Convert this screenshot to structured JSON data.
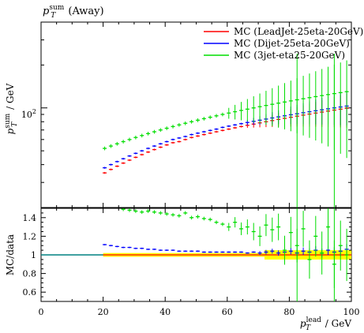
{
  "chart_data": [
    {
      "type": "scatter",
      "panel": "main",
      "title": "p_T^sum (Away)",
      "ylabel": "p_T^sum / GeV",
      "xlim": [
        0,
        100
      ],
      "ylim": [
        20,
        400
      ],
      "yscale": "log",
      "yticks": [
        {
          "value": 100,
          "label": "10²"
        }
      ],
      "legend": "top-right",
      "series": [
        {
          "name": "MC (LeadJet-25eta-20GeV)",
          "color": "#ff0000",
          "x": [
            20.5,
            22.5,
            24.5,
            26.5,
            28.5,
            30.5,
            32.5,
            34.5,
            36.5,
            38.5,
            40.5,
            42.5,
            44.5,
            46.5,
            48.5,
            50.5,
            52.5,
            54.5,
            56.5,
            58.5,
            60.5,
            62.5,
            64.5,
            66.5,
            68.5,
            70.5,
            72.5,
            74.5,
            76.5,
            78.5,
            80.5,
            82.5,
            84.5,
            86.5,
            88.5,
            90.5,
            92.5,
            94.5,
            96.5,
            98.5
          ],
          "y": [
            35,
            37,
            39,
            41,
            43,
            45,
            47,
            49,
            51,
            53,
            55,
            57,
            58,
            60,
            62,
            63.5,
            65,
            66.5,
            68,
            69.5,
            71,
            72.5,
            74,
            75.5,
            77,
            78.5,
            80,
            81.5,
            83,
            84.5,
            86,
            87.5,
            89,
            90.5,
            92,
            93.5,
            95,
            96.5,
            98,
            99.5
          ]
        },
        {
          "name": "MC (Dijet-25eta-20GeV)",
          "color": "#0000ff",
          "x": [
            20.5,
            22.5,
            24.5,
            26.5,
            28.5,
            30.5,
            32.5,
            34.5,
            36.5,
            38.5,
            40.5,
            42.5,
            44.5,
            46.5,
            48.5,
            50.5,
            52.5,
            54.5,
            56.5,
            58.5,
            60.5,
            62.5,
            64.5,
            66.5,
            68.5,
            70.5,
            72.5,
            74.5,
            76.5,
            78.5,
            80.5,
            82.5,
            84.5,
            86.5,
            88.5,
            90.5,
            92.5,
            94.5,
            96.5,
            98.5
          ],
          "y": [
            38,
            40,
            42,
            44,
            46,
            48,
            50,
            52,
            54,
            56,
            58,
            60,
            61.5,
            63,
            65,
            66.5,
            68,
            69.5,
            71,
            73,
            74.5,
            76,
            77.5,
            79,
            80.5,
            82,
            83.5,
            85,
            86.5,
            88,
            89.5,
            91,
            92.5,
            94,
            95.5,
            97,
            98.5,
            100,
            101.5,
            103
          ]
        },
        {
          "name": "MC (3jet-eta25-20GeV)",
          "color": "#00dd00",
          "x": [
            20.5,
            22.5,
            24.5,
            26.5,
            28.5,
            30.5,
            32.5,
            34.5,
            36.5,
            38.5,
            40.5,
            42.5,
            44.5,
            46.5,
            48.5,
            50.5,
            52.5,
            54.5,
            56.5,
            58.5,
            60.5,
            62.5,
            64.5,
            66.5,
            68.5,
            70.5,
            72.5,
            74.5,
            76.5,
            78.5,
            80.5,
            82.5,
            84.5,
            86.5,
            88.5,
            90.5,
            92.5,
            94.5,
            96.5,
            98.5
          ],
          "y": [
            52,
            54,
            56,
            58,
            60,
            62,
            64,
            66,
            68,
            70,
            72,
            74,
            76,
            78,
            80,
            82,
            84,
            86,
            88,
            90,
            92,
            94,
            96,
            98,
            100,
            102,
            104,
            106,
            108,
            110,
            112,
            114,
            116,
            118,
            120,
            122,
            124,
            126,
            128,
            130
          ]
        }
      ]
    },
    {
      "type": "scatter",
      "panel": "ratio",
      "xlabel": "p_T^lead / GeV",
      "ylabel": "MC/data",
      "xlim": [
        0,
        100
      ],
      "ylim": [
        0.5,
        1.5
      ],
      "xticks": [
        0,
        20,
        40,
        60,
        80,
        100
      ],
      "yticks": [
        0.6,
        0.8,
        1,
        1.2,
        1.4
      ],
      "series": [
        {
          "name": "MC (LeadJet-25eta-20GeV)",
          "color": "#ff0000",
          "x": [
            20.5,
            22.5,
            24.5,
            26.5,
            28.5,
            30.5,
            32.5,
            34.5,
            36.5,
            38.5,
            40.5,
            42.5,
            44.5,
            46.5,
            48.5,
            50.5,
            52.5,
            54.5,
            56.5,
            58.5,
            60.5,
            62.5,
            64.5,
            66.5,
            68.5,
            70.5,
            72.5,
            74.5,
            76.5,
            78.5,
            80.5,
            82.5,
            84.5,
            86.5,
            88.5,
            90.5,
            92.5,
            94.5,
            96.5,
            98.5
          ],
          "y": [
            1,
            1,
            1,
            1,
            1,
            1,
            1,
            1,
            1,
            1,
            1,
            1,
            1,
            1,
            1,
            1,
            1,
            1,
            1,
            1,
            1,
            1,
            1,
            1,
            1,
            1,
            1,
            1,
            1,
            1,
            1,
            1,
            1,
            1,
            1,
            1,
            1,
            1,
            1,
            1
          ]
        },
        {
          "name": "MC (Dijet-25eta-20GeV)",
          "color": "#0000ff",
          "x": [
            20.5,
            22.5,
            24.5,
            26.5,
            28.5,
            30.5,
            32.5,
            34.5,
            36.5,
            38.5,
            40.5,
            42.5,
            44.5,
            46.5,
            48.5,
            50.5,
            52.5,
            54.5,
            56.5,
            58.5,
            60.5,
            62.5,
            64.5,
            66.5,
            68.5,
            70.5,
            72.5,
            74.5,
            76.5,
            78.5,
            80.5,
            82.5,
            84.5,
            86.5,
            88.5,
            90.5,
            92.5,
            94.5,
            96.5,
            98.5
          ],
          "y": [
            1.11,
            1.1,
            1.09,
            1.08,
            1.08,
            1.07,
            1.07,
            1.06,
            1.06,
            1.05,
            1.05,
            1.05,
            1.04,
            1.04,
            1.04,
            1.04,
            1.03,
            1.03,
            1.03,
            1.03,
            1.03,
            1.03,
            1.03,
            1.02,
            1.03,
            1.02,
            1.03,
            1.04,
            1.02,
            1.03,
            1.04,
            1.02,
            1.04,
            1.03,
            1.05,
            1.02,
            1.05,
            1.03,
            1.04,
            1.06
          ]
        },
        {
          "name": "MC (3jet-eta25-20GeV)",
          "color": "#00dd00",
          "x": [
            26.5,
            28.5,
            30.5,
            32.5,
            34.5,
            36.5,
            38.5,
            40.5,
            42.5,
            44.5,
            46.5,
            48.5,
            50.5,
            52.5,
            54.5,
            56.5,
            58.5,
            60.5,
            62.5,
            64.5,
            66.5,
            68.5,
            70.5,
            72.5,
            74.5,
            76.5,
            78.5,
            80.5,
            82.5,
            84.5,
            86.5,
            88.5,
            90.5,
            92.5,
            94.5,
            96.5,
            98.5
          ],
          "y": [
            1.49,
            1.48,
            1.47,
            1.46,
            1.47,
            1.46,
            1.45,
            1.44,
            1.43,
            1.42,
            1.45,
            1.4,
            1.41,
            1.39,
            1.38,
            1.35,
            1.33,
            1.3,
            1.35,
            1.28,
            1.3,
            1.25,
            1.2,
            1.32,
            1.27,
            1.3,
            1.05,
            1.24,
            1.1,
            1.28,
            0.95,
            1.2,
            1.02,
            1.3,
            0.9,
            1.1,
            1.0
          ]
        }
      ]
    }
  ]
}
